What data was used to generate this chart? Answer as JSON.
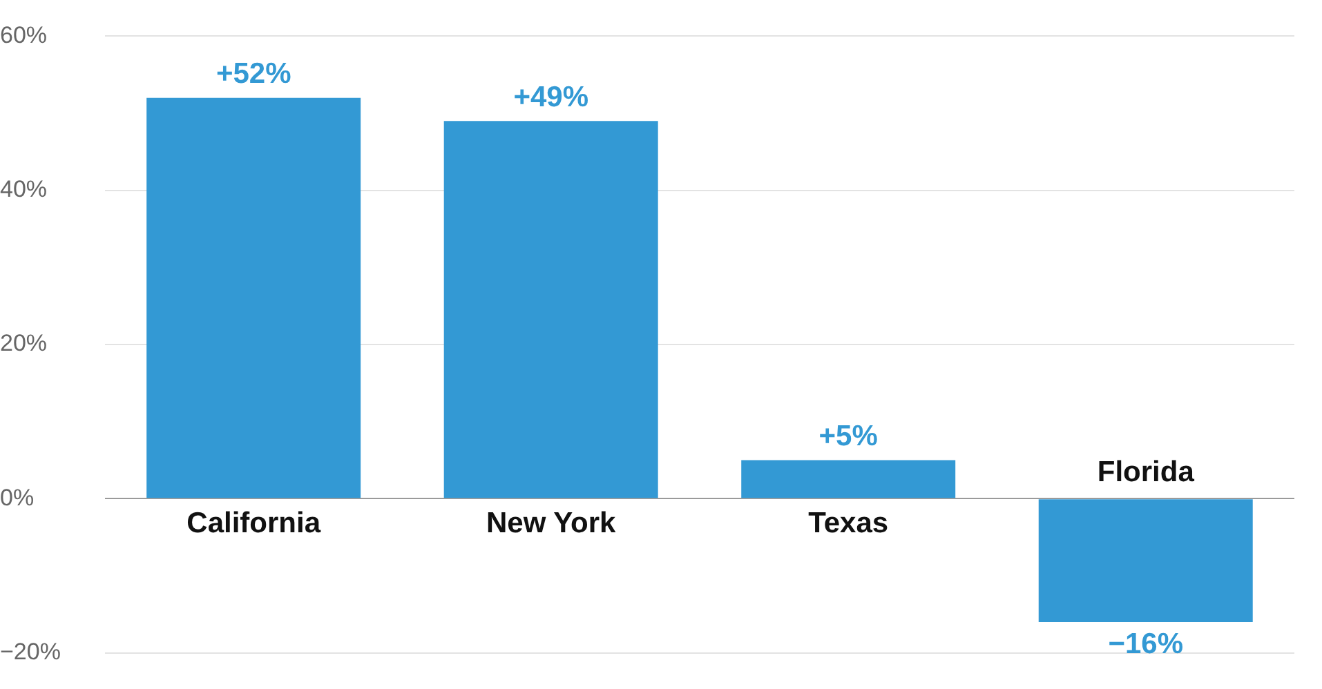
{
  "chart_data": {
    "type": "bar",
    "categories": [
      "California",
      "New York",
      "Texas",
      "Florida"
    ],
    "values": [
      52,
      49,
      5,
      -16
    ],
    "color": "#3399d4",
    "value_labels": [
      "+52%",
      "+49%",
      "+5%",
      "−16%"
    ],
    "ylim": [
      -20,
      60
    ],
    "yticks": [
      {
        "value": -20,
        "label": "−20%"
      },
      {
        "value": 0,
        "label": "0%"
      },
      {
        "value": 20,
        "label": "20%"
      },
      {
        "value": 40,
        "label": "40%"
      },
      {
        "value": 60,
        "label": "60%"
      }
    ],
    "grid": "y",
    "legend": false
  }
}
